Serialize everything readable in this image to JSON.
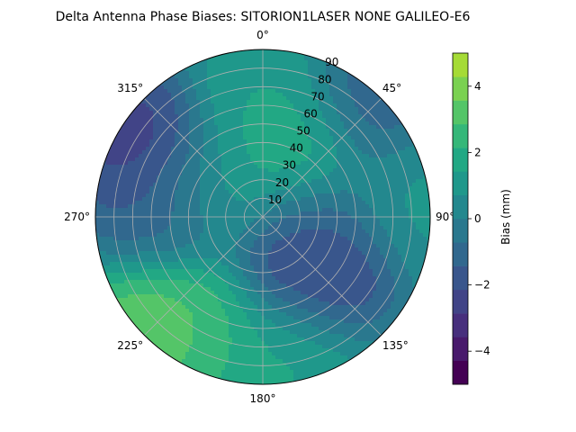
{
  "chart_data": {
    "type": "heatmap",
    "projection": "polar",
    "title": "Delta Antenna Phase Biases: SITORION1LASER  NONE GALILEO-E6",
    "angular_ticks": [
      {
        "angle": 0,
        "label": "0°"
      },
      {
        "angle": 45,
        "label": "45°"
      },
      {
        "angle": 90,
        "label": "90°"
      },
      {
        "angle": 135,
        "label": "135°"
      },
      {
        "angle": 180,
        "label": "180°"
      },
      {
        "angle": 225,
        "label": "225°"
      },
      {
        "angle": 270,
        "label": "270°"
      },
      {
        "angle": 315,
        "label": "315°"
      }
    ],
    "radial_ticks": [
      10,
      20,
      30,
      40,
      50,
      60,
      70,
      80,
      90
    ],
    "radial_range": [
      0,
      90
    ],
    "angular_direction": "clockwise",
    "zero_location": "top",
    "grid": true,
    "colorbar": {
      "label": "Bias (mm)",
      "range": [
        -5,
        5
      ],
      "ticks": [
        -4,
        -2,
        0,
        2,
        4
      ],
      "levels": [
        -5,
        -4.2857,
        -3.5714,
        -2.8571,
        -2.1429,
        -1.4286,
        -0.7143,
        0,
        0.7143,
        1.4286,
        2.1429,
        2.8571,
        3.5714,
        4.2857,
        5
      ],
      "colors": [
        "#440154",
        "#481a6c",
        "#472f7d",
        "#414487",
        "#39568c",
        "#31688e",
        "#2a788e",
        "#23888e",
        "#1f988b",
        "#22a884",
        "#35b779",
        "#54c568",
        "#7ad151",
        "#a5db36",
        "#d2e21b"
      ]
    },
    "features": [
      {
        "azimuth": 225,
        "elevation": 80,
        "value": 4.2
      },
      {
        "azimuth": 210,
        "elevation": 70,
        "value": 2.5
      },
      {
        "azimuth": 170,
        "elevation": 70,
        "value": 1.8
      },
      {
        "azimuth": 30,
        "elevation": 40,
        "value": 2.6
      },
      {
        "azimuth": 0,
        "elevation": 60,
        "value": 1.5
      },
      {
        "azimuth": 300,
        "elevation": 30,
        "value": 1.2
      },
      {
        "azimuth": 80,
        "elevation": 80,
        "value": 1.0
      },
      {
        "azimuth": 300,
        "elevation": 75,
        "value": -3.0
      },
      {
        "azimuth": 140,
        "elevation": 40,
        "value": -3.2
      },
      {
        "azimuth": 45,
        "elevation": 80,
        "value": -1.6
      },
      {
        "azimuth": 100,
        "elevation": 30,
        "value": -1.4
      },
      {
        "azimuth": 270,
        "elevation": 55,
        "value": -1.5
      }
    ]
  }
}
